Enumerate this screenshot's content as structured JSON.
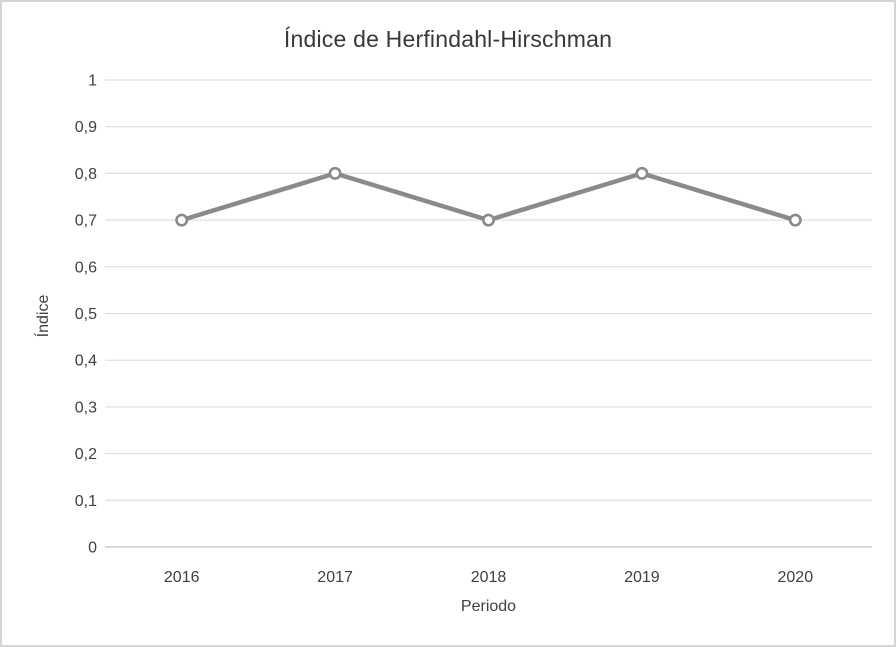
{
  "window": {
    "background": "#ffffff",
    "border_color": "#d5d5d5"
  },
  "chart_data": {
    "type": "line",
    "title": "Índice de Herfindahl-Hirschman",
    "xlabel": "Periodo",
    "ylabel": "Índice",
    "categories": [
      "2016",
      "2017",
      "2018",
      "2019",
      "2020"
    ],
    "values": [
      0.7,
      0.8,
      0.7,
      0.8,
      0.7
    ],
    "ylim": [
      0,
      1
    ],
    "ytick_values": [
      0,
      0.1,
      0.2,
      0.3,
      0.4,
      0.5,
      0.6,
      0.7,
      0.8,
      0.9,
      1
    ],
    "ytick_labels": [
      "0",
      "0,1",
      "0,2",
      "0,3",
      "0,4",
      "0,5",
      "0,6",
      "0,7",
      "0,8",
      "0,9",
      "1"
    ],
    "grid": true,
    "legend": false,
    "marker": "open-circle",
    "style": {
      "line_color": "#8a8a8a",
      "marker_fill": "#ffffff",
      "grid_color": "#d9d9d9",
      "axis_line_color": "#cbcbcb",
      "text_color": "#404040",
      "title_color": "#383838"
    }
  }
}
